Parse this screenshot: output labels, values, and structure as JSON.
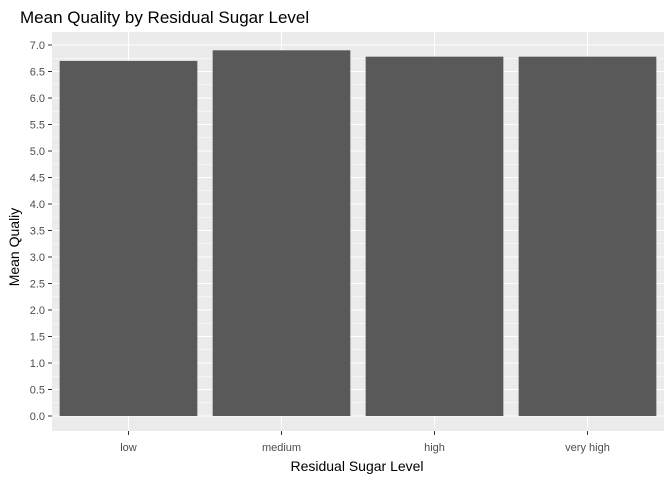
{
  "chart_data": {
    "type": "bar",
    "title": "Mean Quality by Residual Sugar Level",
    "xlabel": "Residual Sugar Level",
    "ylabel": "Mean Qualiy",
    "categories": [
      "low",
      "medium",
      "high",
      "very high"
    ],
    "values": [
      6.7,
      6.9,
      6.78,
      6.78
    ],
    "ylim": [
      0,
      7.0
    ],
    "yticks": [
      "0.0",
      "0.5",
      "1.0",
      "1.5",
      "2.0",
      "2.5",
      "3.0",
      "3.5",
      "4.0",
      "4.5",
      "5.0",
      "5.5",
      "6.0",
      "6.5",
      "7.0"
    ],
    "grid": true,
    "legend": "none",
    "colors": {
      "bar": "#595959",
      "panel": "#ebebeb",
      "grid_major": "#ffffff",
      "tick_text": "#4d4d4d",
      "tick_mark": "#333333"
    }
  }
}
